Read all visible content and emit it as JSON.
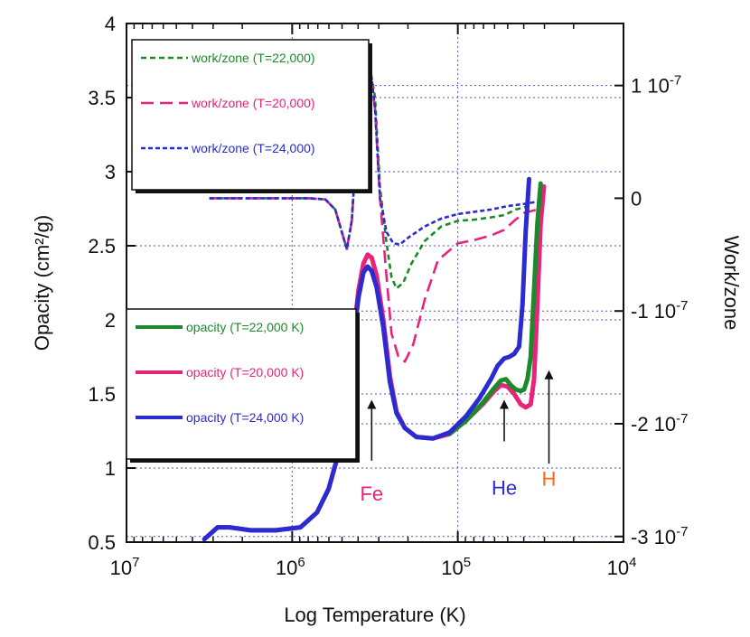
{
  "chart_data": {
    "type": "line",
    "title": "",
    "xlabel": "Log Temperature (K)",
    "ylabel_left": "Opacity (cm²/g)",
    "ylabel_right": "Work/zone",
    "x_axis": {
      "scale": "log",
      "direction": "decreasing",
      "ticks": [
        {
          "value": 7,
          "base": "10",
          "exp": "7"
        },
        {
          "value": 6,
          "base": "10",
          "exp": "6"
        },
        {
          "value": 5,
          "base": "10",
          "exp": "5"
        },
        {
          "value": 4,
          "base": "10",
          "exp": "4"
        }
      ],
      "xlim": [
        7,
        4
      ]
    },
    "y_left": {
      "ylim": [
        0.5,
        4
      ],
      "ticks": [
        "0.5",
        "1",
        "1.5",
        "2",
        "2.5",
        "3",
        "3.5",
        "4"
      ]
    },
    "y_right": {
      "ylim": [
        -3.05e-07,
        1.55e-07
      ],
      "ticks": [
        {
          "value": 1e-07,
          "label": "1 10",
          "exp": "-7"
        },
        {
          "value": 0,
          "label": "0",
          "exp": ""
        },
        {
          "value": -1e-07,
          "label": "-1 10",
          "exp": "-7"
        },
        {
          "value": -2e-07,
          "label": "-2 10",
          "exp": "-7"
        },
        {
          "value": -3e-07,
          "label": "-3 10",
          "exp": "-7"
        }
      ]
    },
    "grid": true,
    "opacity_series": [
      {
        "name": "opacity (T=20,000 K)",
        "color": "#e8237a",
        "points": [
          [
            6.53,
            0.52
          ],
          [
            6.45,
            0.6
          ],
          [
            6.38,
            0.6
          ],
          [
            6.25,
            0.58
          ],
          [
            6.1,
            0.58
          ],
          [
            5.95,
            0.6
          ],
          [
            5.85,
            0.7
          ],
          [
            5.78,
            0.86
          ],
          [
            5.72,
            1.1
          ],
          [
            5.68,
            1.4
          ],
          [
            5.64,
            1.8
          ],
          [
            5.6,
            2.2
          ],
          [
            5.57,
            2.38
          ],
          [
            5.545,
            2.44
          ],
          [
            5.52,
            2.42
          ],
          [
            5.49,
            2.3
          ],
          [
            5.45,
            2.0
          ],
          [
            5.41,
            1.62
          ],
          [
            5.37,
            1.38
          ],
          [
            5.32,
            1.27
          ],
          [
            5.25,
            1.21
          ],
          [
            5.15,
            1.2
          ],
          [
            5.05,
            1.23
          ],
          [
            4.95,
            1.32
          ],
          [
            4.85,
            1.43
          ],
          [
            4.78,
            1.52
          ],
          [
            4.74,
            1.56
          ],
          [
            4.7,
            1.55
          ],
          [
            4.66,
            1.5
          ],
          [
            4.62,
            1.43
          ],
          [
            4.59,
            1.41
          ],
          [
            4.56,
            1.43
          ],
          [
            4.54,
            1.6
          ],
          [
            4.52,
            2.1
          ],
          [
            4.5,
            2.65
          ],
          [
            4.48,
            2.9
          ]
        ]
      },
      {
        "name": "opacity (T=22,000 K)",
        "color": "#1a8a2a",
        "points": [
          [
            5.05,
            1.23
          ],
          [
            4.95,
            1.32
          ],
          [
            4.85,
            1.44
          ],
          [
            4.78,
            1.54
          ],
          [
            4.74,
            1.59
          ],
          [
            4.71,
            1.6
          ],
          [
            4.68,
            1.56
          ],
          [
            4.65,
            1.53
          ],
          [
            4.62,
            1.52
          ],
          [
            4.6,
            1.53
          ],
          [
            4.58,
            1.6
          ],
          [
            4.56,
            1.75
          ],
          [
            4.54,
            2.2
          ],
          [
            4.52,
            2.65
          ],
          [
            4.5,
            2.92
          ]
        ]
      },
      {
        "name": "opacity (T=24,000 K)",
        "color": "#2b2bd0",
        "points": [
          [
            6.53,
            0.52
          ],
          [
            6.45,
            0.6
          ],
          [
            6.38,
            0.6
          ],
          [
            6.25,
            0.58
          ],
          [
            6.1,
            0.58
          ],
          [
            5.95,
            0.6
          ],
          [
            5.85,
            0.7
          ],
          [
            5.78,
            0.86
          ],
          [
            5.72,
            1.1
          ],
          [
            5.68,
            1.4
          ],
          [
            5.64,
            1.78
          ],
          [
            5.6,
            2.15
          ],
          [
            5.57,
            2.32
          ],
          [
            5.545,
            2.36
          ],
          [
            5.52,
            2.33
          ],
          [
            5.49,
            2.22
          ],
          [
            5.45,
            1.95
          ],
          [
            5.41,
            1.58
          ],
          [
            5.37,
            1.37
          ],
          [
            5.32,
            1.27
          ],
          [
            5.25,
            1.21
          ],
          [
            5.15,
            1.2
          ],
          [
            5.05,
            1.24
          ],
          [
            4.95,
            1.35
          ],
          [
            4.87,
            1.47
          ],
          [
            4.8,
            1.6
          ],
          [
            4.76,
            1.69
          ],
          [
            4.72,
            1.74
          ],
          [
            4.69,
            1.75
          ],
          [
            4.66,
            1.77
          ],
          [
            4.63,
            1.82
          ],
          [
            4.61,
            2.1
          ],
          [
            4.59,
            2.6
          ],
          [
            4.57,
            2.95
          ]
        ]
      }
    ],
    "work_series": [
      {
        "name": "work/zone (T=22,000)",
        "color": "#1a8a2a",
        "dash": "6,4",
        "points": [
          [
            6.5,
            0
          ],
          [
            6.2,
            0
          ],
          [
            5.9,
            0
          ],
          [
            5.8,
            -0.01
          ],
          [
            5.74,
            -0.1
          ],
          [
            5.7,
            -0.3
          ],
          [
            5.67,
            -0.45
          ],
          [
            5.64,
            -0.2
          ],
          [
            5.61,
            0.5
          ],
          [
            5.58,
            1.0
          ],
          [
            5.555,
            1.12
          ],
          [
            5.53,
            1.15
          ],
          [
            5.5,
            0.9
          ],
          [
            5.47,
            0.1
          ],
          [
            5.43,
            -0.4
          ],
          [
            5.4,
            -0.7
          ],
          [
            5.37,
            -0.8
          ],
          [
            5.33,
            -0.75
          ],
          [
            5.28,
            -0.58
          ],
          [
            5.2,
            -0.38
          ],
          [
            5.1,
            -0.25
          ],
          [
            5.0,
            -0.2
          ],
          [
            4.9,
            -0.19
          ],
          [
            4.8,
            -0.17
          ],
          [
            4.72,
            -0.15
          ],
          [
            4.65,
            -0.1
          ],
          [
            4.6,
            -0.08
          ],
          [
            4.55,
            -0.05
          ]
        ]
      },
      {
        "name": "work/zone (T=20,000)",
        "color": "#e8237a",
        "dash": "14,7",
        "points": [
          [
            6.5,
            0
          ],
          [
            6.2,
            0
          ],
          [
            5.9,
            0
          ],
          [
            5.8,
            -0.01
          ],
          [
            5.74,
            -0.1
          ],
          [
            5.7,
            -0.3
          ],
          [
            5.67,
            -0.45
          ],
          [
            5.64,
            -0.2
          ],
          [
            5.61,
            0.5
          ],
          [
            5.58,
            1.0
          ],
          [
            5.555,
            1.12
          ],
          [
            5.53,
            1.1
          ],
          [
            5.5,
            0.8
          ],
          [
            5.47,
            0.0
          ],
          [
            5.43,
            -0.7
          ],
          [
            5.4,
            -1.2
          ],
          [
            5.36,
            -1.4
          ],
          [
            5.32,
            -1.45
          ],
          [
            5.27,
            -1.3
          ],
          [
            5.2,
            -0.9
          ],
          [
            5.12,
            -0.55
          ],
          [
            5.0,
            -0.4
          ],
          [
            4.9,
            -0.37
          ],
          [
            4.8,
            -0.33
          ],
          [
            4.72,
            -0.28
          ],
          [
            4.66,
            -0.2
          ],
          [
            4.6,
            -0.13
          ],
          [
            4.52,
            -0.1
          ]
        ]
      },
      {
        "name": "work/zone (T=24,000)",
        "color": "#2b2bd0",
        "dash": "5,3",
        "points": [
          [
            6.5,
            0
          ],
          [
            6.2,
            0
          ],
          [
            5.9,
            0
          ],
          [
            5.8,
            -0.01
          ],
          [
            5.74,
            -0.1
          ],
          [
            5.7,
            -0.3
          ],
          [
            5.67,
            -0.45
          ],
          [
            5.64,
            -0.2
          ],
          [
            5.61,
            0.5
          ],
          [
            5.58,
            1.05
          ],
          [
            5.555,
            1.22
          ],
          [
            5.53,
            1.18
          ],
          [
            5.5,
            0.8
          ],
          [
            5.47,
            0.0
          ],
          [
            5.43,
            -0.3
          ],
          [
            5.39,
            -0.4
          ],
          [
            5.35,
            -0.41
          ],
          [
            5.3,
            -0.35
          ],
          [
            5.2,
            -0.25
          ],
          [
            5.1,
            -0.18
          ],
          [
            5.0,
            -0.14
          ],
          [
            4.9,
            -0.12
          ],
          [
            4.8,
            -0.1
          ],
          [
            4.7,
            -0.07
          ],
          [
            4.6,
            -0.05
          ],
          [
            4.52,
            -0.03
          ]
        ]
      }
    ],
    "work_units": "1e-7",
    "annotations": [
      {
        "text": "Fe",
        "color": "#e8237a",
        "x": 5.52,
        "arrow_from": 1.05,
        "arrow_to": 1.46,
        "label_y": 0.78
      },
      {
        "text": "He",
        "color": "#2b2bd0",
        "x": 4.72,
        "arrow_from": 1.18,
        "arrow_to": 1.46,
        "label_y": 0.82
      },
      {
        "text": "H",
        "color": "#ff6a1a",
        "x": 4.45,
        "arrow_from": 1.03,
        "arrow_to": 1.66,
        "label_y": 0.88
      }
    ],
    "legend_top": [
      {
        "text": "work/zone (T=22,000)",
        "color": "#1a8a2a",
        "dash": "6,4"
      },
      {
        "text": "work/zone (T=20,000)",
        "color": "#e8237a",
        "dash": "14,7"
      },
      {
        "text": "work/zone (T=24,000)",
        "color": "#2b2bd0",
        "dash": "5,3"
      }
    ],
    "legend_bottom": [
      {
        "text": "opacity (T=22,000 K)",
        "color": "#1a8a2a"
      },
      {
        "text": "opacity (T=20,000 K)",
        "color": "#e8237a"
      },
      {
        "text": "opacity (T=24,000 K)",
        "color": "#2b2bd0"
      }
    ]
  }
}
